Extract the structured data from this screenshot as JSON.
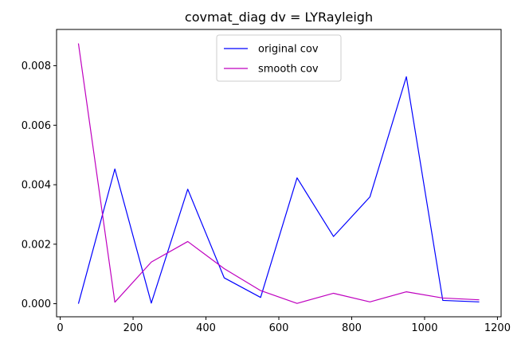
{
  "chart_data": {
    "type": "line",
    "title": "covmat_diag dv = LYRayleigh",
    "xlabel": "",
    "ylabel": "",
    "xlim": [
      -10,
      1210
    ],
    "ylim": [
      -0.00044,
      0.00922
    ],
    "xticks": [
      0,
      200,
      400,
      600,
      800,
      1000,
      1200
    ],
    "xtick_labels": [
      "0",
      "200",
      "400",
      "600",
      "800",
      "1000",
      "1200"
    ],
    "yticks": [
      0.0,
      0.002,
      0.004,
      0.006,
      0.008
    ],
    "ytick_labels": [
      "0.000",
      "0.002",
      "0.004",
      "0.006",
      "0.008"
    ],
    "grid": false,
    "legend_position": "upper-center",
    "x": [
      50,
      150,
      250,
      350,
      450,
      550,
      650,
      750,
      850,
      950,
      1050,
      1150
    ],
    "series": [
      {
        "name": "original cov",
        "color": "#0000ff",
        "values": [
          0.0,
          0.00453,
          2e-05,
          0.00385,
          0.00087,
          0.00021,
          0.00423,
          0.00226,
          0.00359,
          0.00763,
          0.00011,
          6e-05
        ]
      },
      {
        "name": "smooth cov",
        "color": "#bf00bf",
        "values": [
          0.00875,
          5e-05,
          0.0014,
          0.00209,
          0.00118,
          0.00044,
          1e-05,
          0.00035,
          6e-05,
          0.0004,
          0.00019,
          0.00013
        ]
      }
    ]
  }
}
